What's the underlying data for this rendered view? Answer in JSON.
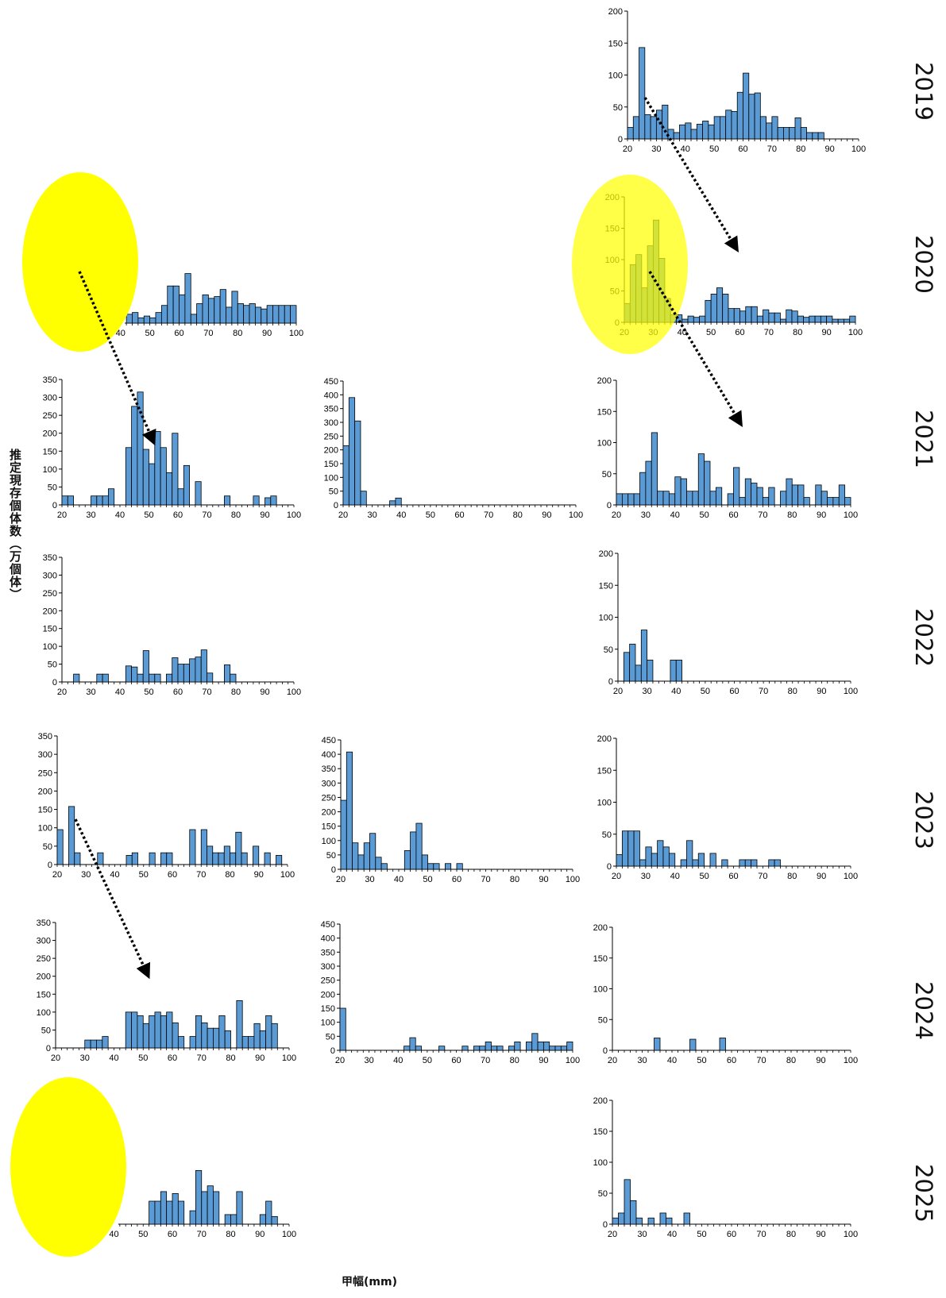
{
  "y_axis_label": "推定現存個体数（万個体）",
  "x_axis_label": "甲幅(mm)",
  "years": [
    "2019",
    "2020",
    "2021",
    "2022",
    "2023",
    "2024",
    "2025"
  ],
  "colors": {
    "bar": "#5b9bd5",
    "bar_edge": "#000000",
    "highlight": "#ffff00",
    "arrow": "#000000"
  },
  "chart_data": [
    {
      "type": "bar",
      "name": "",
      "year": "2019",
      "column": 3,
      "xlim": [
        20,
        100
      ],
      "ylim": [
        0,
        200
      ],
      "yticks": [
        0,
        50,
        100,
        150,
        200
      ],
      "xticks": [
        20,
        30,
        40,
        50,
        60,
        70,
        80,
        90,
        100
      ],
      "x": [
        20,
        22,
        24,
        26,
        28,
        30,
        32,
        34,
        36,
        38,
        40,
        42,
        44,
        46,
        48,
        50,
        52,
        54,
        56,
        58,
        60,
        62,
        64,
        66,
        68,
        70,
        72,
        74,
        76,
        78,
        80,
        82,
        84,
        86
      ],
      "values": [
        18,
        35,
        143,
        38,
        35,
        45,
        53,
        15,
        10,
        22,
        25,
        15,
        23,
        28,
        22,
        35,
        35,
        45,
        43,
        73,
        103,
        70,
        72,
        35,
        25,
        35,
        18,
        18,
        18,
        33,
        18,
        10,
        10,
        10
      ]
    },
    {
      "type": "bar",
      "name": "",
      "year": "2020",
      "column": 1,
      "xlim": [
        20,
        100
      ],
      "ylim": [
        0,
        350
      ],
      "xticks": [
        40,
        50,
        60,
        70,
        80,
        90,
        100
      ],
      "x": [
        42,
        44,
        46,
        48,
        50,
        52,
        54,
        56,
        58,
        60,
        62,
        64,
        66,
        68,
        70,
        72,
        74,
        76,
        78,
        80,
        82,
        84,
        86,
        88,
        90,
        92,
        94,
        96,
        98
      ],
      "values": [
        25,
        30,
        15,
        20,
        15,
        30,
        50,
        105,
        105,
        80,
        140,
        25,
        55,
        80,
        70,
        75,
        95,
        45,
        90,
        55,
        50,
        55,
        45,
        40,
        50,
        50,
        50,
        50,
        50
      ]
    },
    {
      "type": "bar",
      "name": "",
      "year": "2020",
      "column": 3,
      "xlim": [
        20,
        100
      ],
      "ylim": [
        0,
        200
      ],
      "yticks": [
        0,
        50,
        100,
        150,
        200
      ],
      "xticks": [
        20,
        30,
        40,
        50,
        60,
        70,
        80,
        90,
        100
      ],
      "x": [
        20,
        22,
        24,
        26,
        28,
        30,
        32,
        34,
        36,
        38,
        40,
        42,
        44,
        46,
        48,
        50,
        52,
        54,
        56,
        58,
        60,
        62,
        64,
        66,
        68,
        70,
        72,
        74,
        76,
        78,
        80,
        82,
        84,
        86,
        88,
        90,
        92,
        94,
        96,
        98
      ],
      "values": [
        30,
        92,
        108,
        55,
        122,
        163,
        102,
        38,
        12,
        12,
        5,
        10,
        8,
        10,
        35,
        45,
        55,
        45,
        22,
        22,
        18,
        25,
        25,
        10,
        20,
        15,
        15,
        5,
        20,
        18,
        10,
        8,
        10,
        10,
        10,
        10,
        5,
        5,
        5,
        10
      ]
    },
    {
      "type": "bar",
      "name": "",
      "year": "2021",
      "column": 1,
      "xlim": [
        20,
        100
      ],
      "ylim": [
        0,
        350
      ],
      "yticks": [
        0,
        50,
        100,
        150,
        200,
        250,
        300,
        350
      ],
      "xticks": [
        20,
        30,
        40,
        50,
        60,
        70,
        80,
        90,
        100
      ],
      "x": [
        20,
        22,
        24,
        26,
        28,
        30,
        32,
        34,
        36,
        38,
        40,
        42,
        44,
        46,
        48,
        50,
        52,
        54,
        56,
        58,
        60,
        62,
        64,
        66,
        68,
        70,
        72,
        74,
        76,
        78,
        80,
        82,
        84,
        86,
        88,
        90,
        92
      ],
      "values": [
        25,
        25,
        0,
        0,
        0,
        25,
        25,
        25,
        45,
        0,
        0,
        160,
        275,
        315,
        155,
        115,
        205,
        160,
        90,
        200,
        45,
        110,
        0,
        65,
        0,
        0,
        0,
        0,
        25,
        0,
        0,
        0,
        0,
        25,
        0,
        20,
        25
      ]
    },
    {
      "type": "bar",
      "name": "",
      "year": "2021",
      "column": 2,
      "xlim": [
        20,
        100
      ],
      "ylim": [
        0,
        450
      ],
      "yticks": [
        0,
        50,
        100,
        150,
        200,
        250,
        300,
        350,
        400,
        450
      ],
      "xticks": [
        20,
        30,
        40,
        50,
        60,
        70,
        80,
        90,
        100
      ],
      "x": [
        20,
        22,
        24,
        26,
        28,
        30,
        32,
        34,
        36,
        38
      ],
      "values": [
        215,
        390,
        305,
        50,
        0,
        0,
        0,
        0,
        15,
        25
      ]
    },
    {
      "type": "bar",
      "name": "",
      "year": "2021",
      "column": 3,
      "xlim": [
        20,
        100
      ],
      "ylim": [
        0,
        200
      ],
      "yticks": [
        0,
        50,
        100,
        150,
        200
      ],
      "xticks": [
        20,
        30,
        40,
        50,
        60,
        70,
        80,
        90,
        100
      ],
      "x": [
        20,
        22,
        24,
        26,
        28,
        30,
        32,
        34,
        36,
        38,
        40,
        42,
        44,
        46,
        48,
        50,
        52,
        54,
        56,
        58,
        60,
        62,
        64,
        66,
        68,
        70,
        72,
        74,
        76,
        78,
        80,
        82,
        84,
        86,
        88,
        90,
        92,
        94,
        96,
        98
      ],
      "values": [
        18,
        18,
        18,
        18,
        52,
        70,
        116,
        22,
        22,
        18,
        45,
        42,
        22,
        22,
        82,
        70,
        22,
        28,
        0,
        18,
        60,
        12,
        42,
        35,
        28,
        12,
        28,
        0,
        22,
        42,
        32,
        32,
        12,
        0,
        32,
        22,
        12,
        12,
        32,
        12
      ]
    },
    {
      "type": "bar",
      "name": "",
      "year": "2022",
      "column": 1,
      "xlim": [
        20,
        100
      ],
      "ylim": [
        0,
        350
      ],
      "yticks": [
        0,
        50,
        100,
        150,
        200,
        250,
        300,
        350
      ],
      "xticks": [
        20,
        30,
        40,
        50,
        60,
        70,
        80,
        90,
        100
      ],
      "x": [
        20,
        22,
        24,
        26,
        28,
        30,
        32,
        34,
        36,
        38,
        40,
        42,
        44,
        46,
        48,
        50,
        52,
        54,
        56,
        58,
        60,
        62,
        64,
        66,
        68,
        70,
        72,
        74,
        76,
        78
      ],
      "values": [
        0,
        0,
        22,
        0,
        0,
        0,
        22,
        22,
        0,
        0,
        0,
        45,
        42,
        22,
        88,
        22,
        22,
        0,
        22,
        68,
        50,
        50,
        65,
        70,
        90,
        25,
        0,
        0,
        48,
        22
      ]
    },
    {
      "type": "bar",
      "name": "",
      "year": "2022",
      "column": 3,
      "xlim": [
        20,
        100
      ],
      "ylim": [
        0,
        200
      ],
      "yticks": [
        0,
        50,
        100,
        150,
        200
      ],
      "xticks": [
        20,
        30,
        40,
        50,
        60,
        70,
        80,
        90,
        100
      ],
      "x": [
        20,
        22,
        24,
        26,
        28,
        30,
        32,
        34,
        36,
        38,
        40
      ],
      "values": [
        0,
        45,
        58,
        25,
        80,
        33,
        0,
        0,
        0,
        33,
        33
      ]
    },
    {
      "type": "bar",
      "name": "",
      "year": "2023",
      "column": 1,
      "xlim": [
        20,
        100
      ],
      "ylim": [
        0,
        350
      ],
      "yticks": [
        0,
        50,
        100,
        150,
        200,
        250,
        300,
        350
      ],
      "xticks": [
        20,
        30,
        40,
        50,
        60,
        70,
        80,
        90,
        100
      ],
      "x": [
        20,
        22,
        24,
        26,
        28,
        30,
        32,
        34,
        36,
        38,
        40,
        42,
        44,
        46,
        48,
        50,
        52,
        54,
        56,
        58,
        60,
        62,
        64,
        66,
        68,
        70,
        72,
        74,
        76,
        78,
        80,
        82,
        84,
        86,
        88,
        90,
        92,
        94,
        96
      ],
      "values": [
        95,
        0,
        158,
        32,
        0,
        0,
        0,
        32,
        0,
        0,
        0,
        0,
        25,
        32,
        0,
        0,
        32,
        0,
        32,
        32,
        0,
        0,
        0,
        95,
        0,
        95,
        50,
        32,
        32,
        50,
        32,
        88,
        32,
        0,
        50,
        0,
        32,
        0,
        25
      ]
    },
    {
      "type": "bar",
      "name": "",
      "year": "2023",
      "column": 2,
      "xlim": [
        20,
        100
      ],
      "ylim": [
        0,
        450
      ],
      "yticks": [
        0,
        50,
        100,
        150,
        200,
        250,
        300,
        350,
        400,
        450
      ],
      "xticks": [
        20,
        30,
        40,
        50,
        60,
        70,
        80,
        90,
        100
      ],
      "x": [
        20,
        22,
        24,
        26,
        28,
        30,
        32,
        34,
        36,
        38,
        40,
        42,
        44,
        46,
        48,
        50,
        52,
        54,
        56,
        58,
        60
      ],
      "values": [
        240,
        408,
        92,
        50,
        92,
        125,
        42,
        20,
        0,
        0,
        0,
        65,
        130,
        160,
        50,
        20,
        20,
        0,
        20,
        0,
        20
      ]
    },
    {
      "type": "bar",
      "name": "",
      "year": "2023",
      "column": 3,
      "xlim": [
        20,
        100
      ],
      "ylim": [
        0,
        200
      ],
      "yticks": [
        0,
        50,
        100,
        150,
        200
      ],
      "xticks": [
        20,
        30,
        40,
        50,
        60,
        70,
        80,
        90,
        100
      ],
      "x": [
        20,
        22,
        24,
        26,
        28,
        30,
        32,
        34,
        36,
        38,
        40,
        42,
        44,
        46,
        48,
        50,
        52,
        54,
        56,
        58,
        60,
        62,
        64,
        66,
        68,
        70,
        72,
        74
      ],
      "values": [
        18,
        55,
        55,
        55,
        10,
        30,
        20,
        40,
        30,
        20,
        0,
        10,
        40,
        10,
        20,
        0,
        20,
        0,
        10,
        0,
        0,
        10,
        10,
        10,
        0,
        0,
        10,
        10
      ]
    },
    {
      "type": "bar",
      "name": "",
      "year": "2024",
      "column": 1,
      "xlim": [
        20,
        100
      ],
      "ylim": [
        0,
        350
      ],
      "yticks": [
        0,
        50,
        100,
        150,
        200,
        250,
        300,
        350
      ],
      "xticks": [
        20,
        30,
        40,
        50,
        60,
        70,
        80,
        90,
        100
      ],
      "x": [
        20,
        22,
        24,
        26,
        28,
        30,
        32,
        34,
        36,
        38,
        40,
        42,
        44,
        46,
        48,
        50,
        52,
        54,
        56,
        58,
        60,
        62,
        64,
        66,
        68,
        70,
        72,
        74,
        76,
        78,
        80,
        82,
        84,
        86,
        88,
        90,
        92,
        94,
        96
      ],
      "values": [
        0,
        0,
        0,
        0,
        0,
        22,
        22,
        22,
        32,
        0,
        0,
        0,
        100,
        100,
        90,
        68,
        90,
        100,
        90,
        100,
        70,
        32,
        0,
        32,
        90,
        70,
        55,
        55,
        90,
        48,
        0,
        132,
        32,
        32,
        68,
        48,
        90,
        68,
        0
      ]
    },
    {
      "type": "bar",
      "name": "",
      "year": "2024",
      "column": 2,
      "xlim": [
        20,
        100
      ],
      "ylim": [
        0,
        450
      ],
      "yticks": [
        0,
        50,
        100,
        150,
        200,
        250,
        300,
        350,
        400,
        450
      ],
      "xticks": [
        20,
        30,
        40,
        50,
        60,
        70,
        80,
        90,
        100
      ],
      "x": [
        20,
        22,
        24,
        26,
        28,
        30,
        32,
        34,
        36,
        38,
        40,
        42,
        44,
        46,
        48,
        50,
        52,
        54,
        56,
        58,
        60,
        62,
        64,
        66,
        68,
        70,
        72,
        74,
        76,
        78,
        80,
        82,
        84,
        86,
        88,
        90,
        92,
        94,
        96,
        98
      ],
      "values": [
        150,
        0,
        0,
        0,
        0,
        0,
        0,
        0,
        0,
        0,
        0,
        15,
        45,
        15,
        0,
        0,
        0,
        15,
        0,
        0,
        0,
        15,
        0,
        15,
        15,
        30,
        15,
        15,
        0,
        15,
        30,
        0,
        30,
        60,
        30,
        30,
        15,
        15,
        15,
        30
      ]
    },
    {
      "type": "bar",
      "name": "",
      "year": "2024",
      "column": 3,
      "xlim": [
        20,
        100
      ],
      "ylim": [
        0,
        200
      ],
      "yticks": [
        0,
        50,
        100,
        150,
        200
      ],
      "xticks": [
        20,
        30,
        40,
        50,
        60,
        70,
        80,
        90,
        100
      ],
      "x": [
        20,
        22,
        24,
        26,
        28,
        30,
        32,
        34,
        36,
        38,
        40,
        42,
        44,
        46,
        48,
        50,
        52,
        54,
        56
      ],
      "values": [
        0,
        0,
        0,
        0,
        0,
        0,
        0,
        20,
        0,
        0,
        0,
        0,
        0,
        18,
        0,
        0,
        0,
        0,
        20
      ]
    },
    {
      "type": "bar",
      "name": "",
      "year": "2025",
      "column": 1,
      "xlim": [
        20,
        100
      ],
      "ylim": [
        0,
        350
      ],
      "xticks": [
        40,
        50,
        60,
        70,
        80,
        90,
        100
      ],
      "x": [
        42,
        44,
        46,
        48,
        50,
        52,
        54,
        56,
        58,
        60,
        62,
        64,
        66,
        68,
        70,
        72,
        74,
        76,
        78,
        80,
        82,
        84,
        86,
        88,
        90,
        92,
        94
      ],
      "values": [
        0,
        0,
        0,
        0,
        0,
        60,
        60,
        85,
        60,
        80,
        60,
        0,
        35,
        140,
        85,
        100,
        85,
        0,
        25,
        25,
        85,
        0,
        0,
        0,
        25,
        60,
        20
      ]
    },
    {
      "type": "bar",
      "name": "",
      "year": "2025",
      "column": 3,
      "xlim": [
        20,
        100
      ],
      "ylim": [
        0,
        200
      ],
      "yticks": [
        0,
        50,
        100,
        150,
        200
      ],
      "xticks": [
        20,
        30,
        40,
        50,
        60,
        70,
        80,
        90,
        100
      ],
      "x": [
        20,
        22,
        24,
        26,
        28,
        30,
        32,
        34,
        36,
        38,
        40,
        42,
        44
      ],
      "values": [
        10,
        18,
        72,
        38,
        10,
        0,
        10,
        0,
        18,
        10,
        0,
        0,
        18
      ]
    }
  ]
}
